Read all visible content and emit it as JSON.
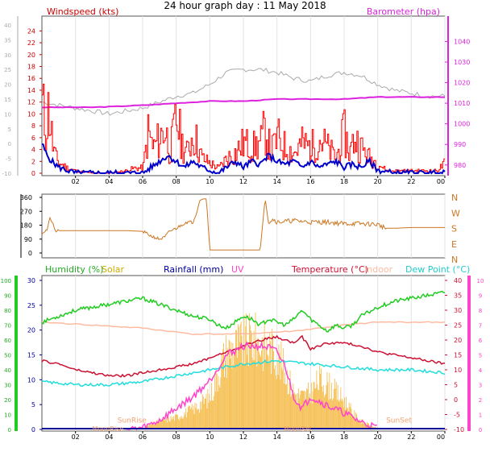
{
  "title": "24 hour graph day : 11 May 2018",
  "colors": {
    "windspeed": "#ff0000",
    "gust": "#ff0000",
    "avg": "#0000cc",
    "barometer": "#dd22dd",
    "dir_gray": "#aaaaaa",
    "direction": "#cc7722",
    "humidity": "#22cc22",
    "solar": "#f5b942",
    "rainfall": "#000099",
    "uv": "#ff44cc",
    "temperature": "#cc1133",
    "indoor": "#ffbba0",
    "dewpoint": "#22dddd",
    "axis_left": "#aaaaaa",
    "axis_right": "#ff66cc",
    "axis_bar_green": "#22cc22",
    "axis_bar_pink": "#ff44cc"
  },
  "chart_data": [
    {
      "id": "wind",
      "type": "line",
      "labels": {
        "left": "Windspeed (kts)",
        "right": "Barometer (hpa)"
      },
      "y_left": {
        "ticks": [
          0,
          2,
          4,
          6,
          8,
          10,
          12,
          14,
          16,
          18,
          20,
          22,
          24
        ],
        "range": [
          0,
          25
        ]
      },
      "y_left_gray": {
        "ticks": [
          -10,
          -5,
          0,
          5,
          10,
          15,
          20,
          25,
          30,
          35,
          40
        ],
        "range": [
          -10,
          40
        ]
      },
      "y_right": {
        "ticks": [
          980,
          990,
          1000,
          1010,
          1020,
          1030,
          1040
        ],
        "range": [
          976,
          1048
        ]
      },
      "x_ticks": [
        "02",
        "04",
        "06",
        "08",
        "10",
        "12",
        "14",
        "16",
        "18",
        "20",
        "22",
        "00"
      ],
      "series": [
        {
          "key": "gust",
          "hours": [
            0,
            0.2,
            0.4,
            0.6,
            0.8,
            1,
            1.5,
            2,
            3,
            4,
            5,
            5.5,
            6,
            6.3,
            6.6,
            7,
            7.3,
            7.6,
            8,
            8.3,
            8.6,
            9,
            9.5,
            10,
            10.5,
            11,
            11.5,
            12,
            12.5,
            13,
            13.3,
            13.6,
            14,
            14.5,
            15,
            15.5,
            16,
            16.5,
            17,
            17.5,
            18,
            18.3,
            18.6,
            19,
            19.5,
            20,
            20.5,
            21,
            22,
            23,
            23.5,
            24
          ],
          "values": [
            13,
            9,
            13,
            6,
            3,
            2,
            1,
            0.5,
            0,
            0,
            0.5,
            1,
            1,
            8,
            5,
            7,
            9,
            4,
            11,
            6,
            4,
            8,
            3,
            2,
            1,
            3,
            4,
            6,
            5,
            6,
            9,
            4,
            7,
            5,
            4,
            6,
            5,
            7,
            5,
            3,
            8,
            4,
            7,
            5,
            3,
            2,
            0.5,
            0.5,
            0.5,
            0.5,
            0.5,
            2
          ]
        },
        {
          "key": "avg",
          "hours": [
            0,
            0.3,
            0.6,
            1,
            1.5,
            2,
            3,
            4,
            5,
            6,
            6.5,
            7,
            7.5,
            8,
            8.5,
            9,
            9.5,
            10,
            10.5,
            11,
            11.5,
            12,
            12.5,
            13,
            13.5,
            14,
            14.5,
            15,
            15.5,
            16,
            16.5,
            17,
            17.5,
            18,
            18.5,
            19,
            19.5,
            20,
            21,
            22,
            23,
            24
          ],
          "values": [
            5,
            3,
            2,
            1,
            0.5,
            0,
            0,
            0,
            0,
            0,
            1,
            2,
            3,
            2,
            1,
            2,
            1,
            0.5,
            0,
            1,
            2,
            1,
            2,
            1.5,
            3,
            2,
            1.5,
            2,
            1,
            2,
            1,
            1.5,
            2,
            1,
            1.5,
            1,
            2,
            0.5,
            0,
            0,
            0,
            0
          ]
        },
        {
          "key": "barometer",
          "unit": "hpa",
          "hours": [
            0,
            3,
            6,
            8,
            10,
            12,
            14,
            16,
            18,
            20,
            22,
            24
          ],
          "values": [
            1008,
            1008,
            1009,
            1010,
            1011,
            1011,
            1012,
            1012,
            1012,
            1013,
            1013,
            1013
          ]
        },
        {
          "key": "dir_gray",
          "hours": [
            0,
            1,
            2,
            3,
            4,
            5,
            6,
            7,
            8,
            9,
            10,
            11,
            12,
            13,
            14,
            15,
            16,
            17,
            18,
            19,
            20,
            21,
            22,
            23,
            24
          ],
          "values": [
            14,
            13,
            12,
            11,
            10,
            11,
            12,
            14,
            16,
            17,
            20,
            24,
            25,
            25,
            24,
            22,
            21,
            23,
            24,
            23,
            20,
            18,
            17,
            16,
            16
          ]
        }
      ]
    },
    {
      "id": "direction",
      "type": "line",
      "y_left": {
        "ticks": [
          0,
          90,
          180,
          270,
          360
        ],
        "range": [
          0,
          360
        ]
      },
      "y_right_letters": [
        "N",
        "W",
        "S",
        "E",
        "N"
      ],
      "series": [
        {
          "key": "direction",
          "hours": [
            0,
            0.3,
            0.5,
            0.8,
            1,
            2,
            3,
            4,
            5,
            6,
            6.5,
            7,
            7.3,
            7.6,
            8,
            8.3,
            8.6,
            9,
            9.2,
            9.4,
            9.6,
            9.8,
            10,
            12,
            13,
            13.3,
            13.5,
            13.8,
            14,
            15,
            16,
            17,
            18,
            19,
            20,
            20.5,
            21,
            22,
            23,
            24
          ],
          "values": [
            130,
            150,
            230,
            140,
            145,
            145,
            145,
            145,
            145,
            140,
            110,
            90,
            100,
            140,
            160,
            180,
            200,
            200,
            250,
            340,
            350,
            350,
            20,
            20,
            20,
            360,
            200,
            220,
            200,
            210,
            200,
            200,
            190,
            190,
            185,
            160,
            160,
            165,
            165,
            165
          ]
        }
      ]
    },
    {
      "id": "multi",
      "type": "line",
      "labels": {
        "humidity": "Humidity (%)",
        "solar": "Solar",
        "rainfall": "Rainfall (mm)",
        "uv": "UV",
        "temperature": "Temperature (°C)",
        "indoor": "Indoor",
        "dewpoint": "Dew Point (°C)"
      },
      "y_humidity": {
        "ticks": [
          0,
          10,
          20,
          30,
          40,
          50,
          60,
          70,
          80,
          90,
          100
        ],
        "range": [
          0,
          100
        ]
      },
      "y_rain": {
        "ticks": [
          0,
          5,
          10,
          15,
          20,
          25,
          30
        ],
        "range": [
          0,
          30
        ]
      },
      "y_temp": {
        "ticks": [
          -10,
          -5,
          0,
          5,
          10,
          15,
          20,
          25,
          30,
          35,
          40
        ],
        "range": [
          -10,
          40
        ]
      },
      "y_uv": {
        "ticks": [
          0,
          1,
          2,
          3,
          4,
          5,
          6,
          7,
          8,
          9,
          10
        ],
        "range": [
          0,
          10
        ]
      },
      "annotations": [
        "SunRise",
        "SunSet",
        "MoonRise",
        "MoonSet"
      ],
      "series": [
        {
          "key": "humidity",
          "hours": [
            0,
            1,
            2,
            3,
            4,
            5,
            6,
            7,
            8,
            9,
            10,
            10.5,
            11,
            11.5,
            12,
            12.5,
            13,
            13.5,
            14,
            14.5,
            15,
            15.5,
            16,
            16.5,
            17,
            17.5,
            18,
            18.5,
            19,
            20,
            21,
            22,
            23,
            24
          ],
          "values": [
            72,
            76,
            80,
            82,
            84,
            86,
            88,
            84,
            80,
            76,
            74,
            70,
            68,
            72,
            76,
            74,
            70,
            74,
            72,
            70,
            74,
            80,
            74,
            70,
            66,
            70,
            68,
            70,
            76,
            82,
            86,
            88,
            90,
            92
          ]
        },
        {
          "key": "temperature",
          "hours": [
            0,
            1,
            2,
            3,
            4,
            5,
            6,
            7,
            8,
            9,
            10,
            11,
            12,
            13,
            14,
            14.5,
            15,
            15.5,
            16,
            17,
            18,
            19,
            20,
            21,
            22,
            23,
            24
          ],
          "values": [
            13,
            12,
            10,
            9,
            8,
            8,
            9,
            10,
            11,
            12,
            14,
            16,
            18,
            20,
            21,
            20,
            19,
            21,
            17,
            19,
            19,
            18,
            16,
            15,
            14,
            13,
            12
          ]
        },
        {
          "key": "dewpoint",
          "hours": [
            0,
            2,
            4,
            6,
            8,
            10,
            12,
            14,
            16,
            18,
            20,
            22,
            24
          ],
          "values": [
            6,
            5,
            5,
            6,
            8,
            10,
            12,
            13,
            12,
            11,
            10,
            10,
            9
          ]
        },
        {
          "key": "indoor",
          "hours": [
            0,
            3,
            6,
            9,
            12,
            15,
            18,
            20,
            22,
            24
          ],
          "values": [
            26,
            25,
            24,
            22,
            22,
            23,
            25,
            26,
            26,
            26
          ]
        },
        {
          "key": "solar",
          "hours": [
            5,
            6,
            7,
            8,
            9,
            10,
            10.5,
            11,
            11.5,
            12,
            12.5,
            13,
            13.5,
            14,
            14.5,
            15,
            15.5,
            16,
            16.5,
            17,
            17.5,
            18,
            18.5,
            19,
            20
          ],
          "values": [
            0,
            0.5,
            2,
            3,
            5,
            8,
            14,
            19,
            20,
            21,
            22,
            21,
            20,
            18,
            14,
            9,
            8,
            9,
            12,
            11,
            9,
            7,
            4,
            2,
            0.2
          ]
        },
        {
          "key": "uv",
          "hours": [
            5,
            6,
            7,
            8,
            9,
            10,
            11,
            12,
            13,
            13.5,
            14,
            14.5,
            15,
            15.5,
            16,
            17,
            18,
            19,
            20
          ],
          "values": [
            0,
            0.1,
            0.6,
            1.4,
            2.2,
            3.3,
            5,
            5.6,
            5.6,
            5.5,
            5.2,
            4.2,
            2.2,
            1.4,
            2.2,
            1.6,
            1.1,
            0.5,
            0.1
          ]
        },
        {
          "key": "rainfall",
          "hours": [
            0,
            24
          ],
          "values": [
            0,
            0
          ]
        }
      ]
    }
  ]
}
